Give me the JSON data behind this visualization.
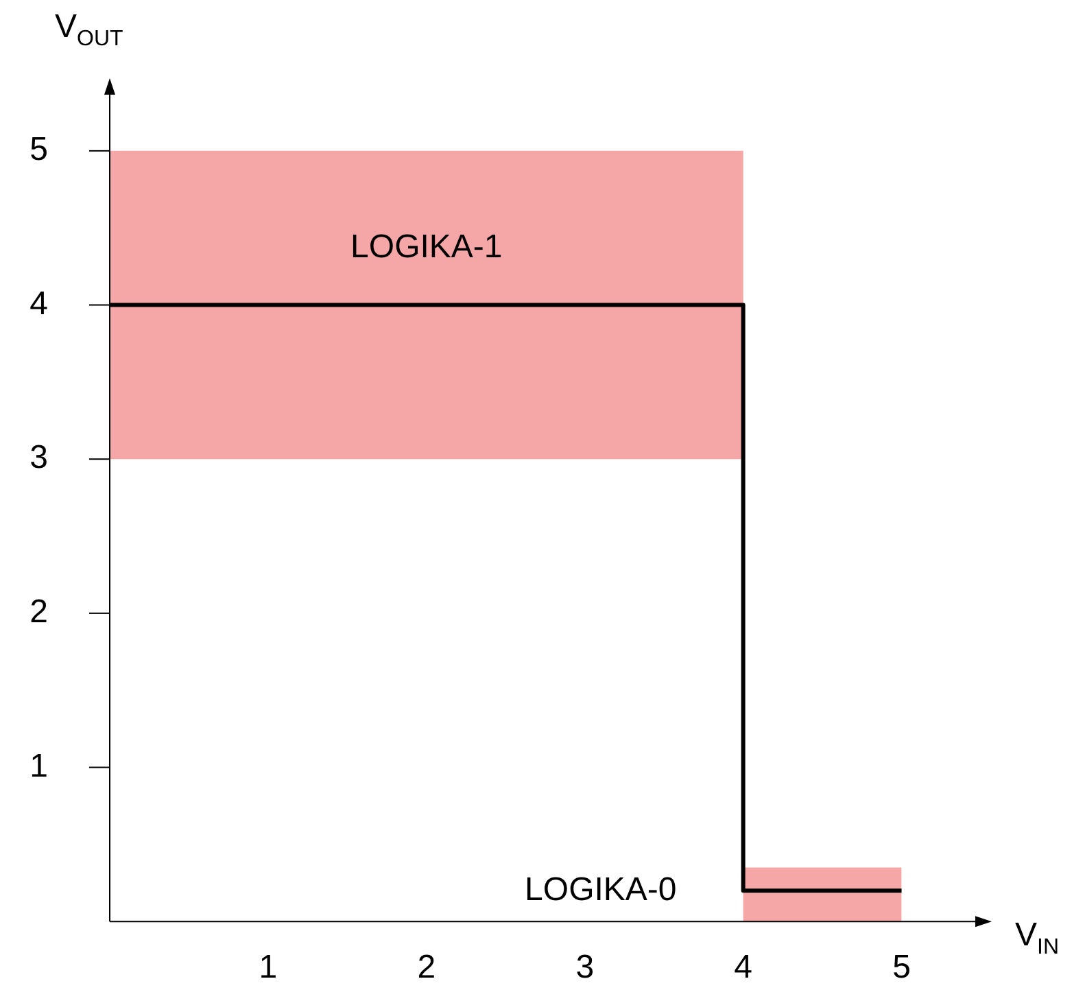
{
  "chart_data": {
    "type": "step",
    "xlabel": "V$_{IN}$",
    "ylabel": "V$_{OUT}$",
    "xlim": [
      0,
      5.5
    ],
    "ylim": [
      0,
      5.4
    ],
    "xticks": [
      1,
      2,
      3,
      4,
      5
    ],
    "yticks": [
      1,
      2,
      3,
      4,
      5
    ],
    "grid": false,
    "legend": false,
    "marker": "none",
    "line_style": "solid",
    "series": [
      {
        "color": "#000000",
        "x": [
          0,
          4,
          4,
          5
        ],
        "values": [
          4,
          4,
          0.2,
          0.2
        ],
        "lower": [
          3,
          3,
          0,
          0
        ],
        "upper": [
          5,
          5,
          0.35,
          0.35
        ]
      }
    ],
    "annotations": [
      "LOGIKA-1",
      "LOGIKA-0"
    ]
  }
}
